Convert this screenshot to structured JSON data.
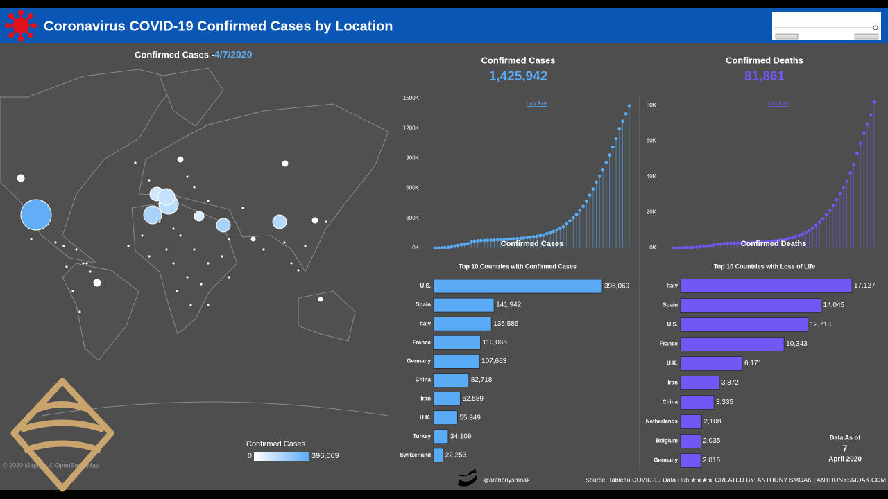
{
  "header": {
    "title": "Coronavirus COVID-19 Confirmed Cases by Location"
  },
  "map": {
    "title": "Confirmed Cases - ",
    "date": "4/7/2020",
    "attribution": "© 2020 Mapbox © OpenStreetMap",
    "legend": {
      "title": "Confirmed Cases",
      "min": 0,
      "max": {
        "value": 396069,
        "label": "396,069"
      }
    }
  },
  "chart_data": [
    {
      "type": "lollipop",
      "title": "Confirmed Cases",
      "total": "1,425,942",
      "annotation": "Log Axis",
      "ylim": [
        0,
        1500000
      ],
      "yticks": [
        {
          "value": 0,
          "label": "0K"
        },
        {
          "value": 300000,
          "label": "300K"
        },
        {
          "value": 600000,
          "label": "600K"
        },
        {
          "value": 900000,
          "label": "900K"
        },
        {
          "value": 1200000,
          "label": "1200K"
        },
        {
          "value": 1500000,
          "label": "1500K"
        }
      ],
      "series": [
        {
          "name": "Confirmed Cases",
          "color": "#5aaaf5",
          "values": [
            555,
            941,
            2118,
            5578,
            8234,
            12038,
            19881,
            27635,
            34391,
            40150,
            44802,
            60368,
            69030,
            73332,
            75641,
            76199,
            78572,
            79561,
            80413,
            82756,
            84124,
            86013,
            88369,
            90306,
            92840,
            95120,
            97886,
            101800,
            105847,
            109821,
            113590,
            118620,
            125875,
            128343,
            145193,
            156099,
            167447,
            181546,
            197102,
            214821,
            242570,
            272208,
            304507,
            336953,
            378235,
            418045,
            467653,
            529591,
            593291,
            660706,
            720117,
            782365,
            857487,
            932605,
            1013157,
            1095917,
            1197405,
            1272115,
            1345101,
            1425942
          ]
        }
      ]
    },
    {
      "type": "lollipop",
      "title": "Confirmed Deaths",
      "total": "81,861",
      "annotation": "Log Axis",
      "ylim": [
        0,
        82000
      ],
      "yticks": [
        {
          "value": 0,
          "label": "0K"
        },
        {
          "value": 20000,
          "label": "20K"
        },
        {
          "value": 40000,
          "label": "40K"
        },
        {
          "value": 60000,
          "label": "60K"
        },
        {
          "value": 80000,
          "label": "80K"
        }
      ],
      "series": [
        {
          "name": "Confirmed Deaths",
          "color": "#7058f5",
          "values": [
            17,
            26,
            56,
            131,
            213,
            259,
            426,
            563,
            813,
            910,
            1113,
            1370,
            1770,
            2122,
            2247,
            2469,
            2629,
            2708,
            2770,
            2814,
            2872,
            2941,
            2996,
            3085,
            3160,
            3254,
            3348,
            3460,
            3558,
            3803,
            3996,
            4262,
            4615,
            4720,
            5404,
            5819,
            6440,
            7126,
            7905,
            8733,
            9867,
            11299,
            12973,
            14623,
            16497,
            18615,
            21181,
            23970,
            27198,
            30652,
            33925,
            37582,
            42107,
            46809,
            53179,
            58787,
            64606,
            69374,
            74565,
            81861
          ]
        }
      ]
    },
    {
      "type": "hbar",
      "title": "Top 10 Countries with Confirmed Cases",
      "color": "#5aaaf5",
      "categories": [
        "U.S.",
        "Spain",
        "Italy",
        "France",
        "Germany",
        "China",
        "Iran",
        "U.K.",
        "Turkey",
        "Switzerland"
      ],
      "values": [
        396069,
        141942,
        135586,
        110065,
        107663,
        82718,
        62589,
        55949,
        34109,
        22253
      ],
      "value_labels": [
        "396,069",
        "141,942",
        "135,586",
        "110,065",
        "107,663",
        "82,718",
        "62,589",
        "55,949",
        "34,109",
        "22,253"
      ]
    },
    {
      "type": "hbar",
      "title": "Top 10 Countries with Loss of Life",
      "color": "#7058f5",
      "categories": [
        "Italy",
        "Spain",
        "U.S.",
        "France",
        "U.K.",
        "Iran",
        "China",
        "Netherlands",
        "Belgium",
        "Germany"
      ],
      "values": [
        17127,
        14045,
        12718,
        10343,
        6171,
        3872,
        3335,
        2108,
        2035,
        2016
      ],
      "value_labels": [
        "17,127",
        "14,045",
        "12,718",
        "10,343",
        "6,171",
        "3,872",
        "3,335",
        "2,108",
        "2,035",
        "2,016"
      ]
    }
  ],
  "data_as_of": {
    "title": "Data As of",
    "day": "7",
    "month": "April 2020"
  },
  "footer": {
    "handle": "@anthonysmoak",
    "credits": "Source: Tableau COVID-19 Data Hub ★★★★ CREATED BY: ANTHONY SMOAK | ANTHONYSMOAK.COM"
  }
}
